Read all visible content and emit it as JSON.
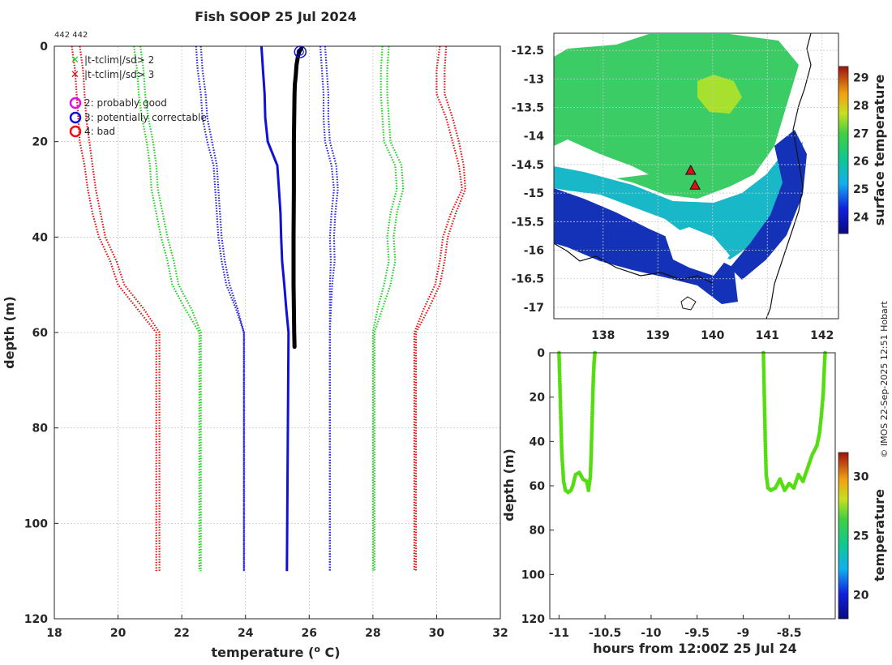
{
  "title": "Fish SOOP 25 Jul 2024",
  "counts_label": "442 442",
  "credit": "© IMOS 22-Sep-2025 12:51 Hobart",
  "colors": {
    "profile": "#000000",
    "clim": "#1010d8",
    "sd1": "#22cc22",
    "sd2": "#2222dd",
    "sd3": "#dd1111",
    "scatter": "#55dd11",
    "marker_pg": "#e010e0",
    "marker_pc": "#1010d8",
    "marker_bad": "#ee1111"
  },
  "legend": {
    "flag_x_green": "|t-tclim|/sd> 2",
    "flag_x_red": "|t-tclim|/sd> 3",
    "qc_good": "2: probably good",
    "qc_correctable": "3: potentially correctable",
    "qc_bad": "4: bad"
  },
  "chart_data": [
    {
      "id": "profile",
      "type": "line",
      "title": "Fish SOOP 25 Jul 2024",
      "xlabel": "temperature (o C)",
      "ylabel": "depth (m)",
      "xlim": [
        18,
        32
      ],
      "ylim": [
        120,
        0
      ],
      "xticks": [
        "18",
        "20",
        "22",
        "24",
        "26",
        "28",
        "30",
        "32"
      ],
      "yticks": [
        "0",
        "20",
        "40",
        "60",
        "80",
        "100",
        "120"
      ],
      "depths": [
        0,
        5,
        10,
        15,
        20,
        25,
        30,
        35,
        40,
        45,
        50,
        55,
        60,
        110
      ],
      "series": [
        {
          "name": "climatology",
          "style": "solid",
          "color_key": "clim",
          "values": [
            24.5,
            24.55,
            24.6,
            24.62,
            24.7,
            25.0,
            25.05,
            25.1,
            25.12,
            25.15,
            25.22,
            25.28,
            25.35,
            25.3
          ]
        },
        {
          "name": "clim - 1sd",
          "style": "dotted",
          "color_key": "sd2",
          "values": [
            22.45,
            22.5,
            22.6,
            22.65,
            22.8,
            23.0,
            23.05,
            23.1,
            23.15,
            23.25,
            23.4,
            23.7,
            23.95,
            23.95
          ]
        },
        {
          "name": "clim + 1sd",
          "style": "dotted",
          "color_key": "sd2",
          "values": [
            26.35,
            26.4,
            26.45,
            26.45,
            26.5,
            26.7,
            26.78,
            26.7,
            26.65,
            26.68,
            26.65,
            26.65,
            26.65,
            26.65
          ]
        },
        {
          "name": "clim - 1sd (b)",
          "style": "dotted",
          "color_key": "sd2",
          "values": [
            22.6,
            22.65,
            22.75,
            22.8,
            22.95,
            23.1,
            23.15,
            23.2,
            23.25,
            23.35,
            23.5,
            23.75,
            23.95,
            23.95
          ]
        },
        {
          "name": "clim + 1sd (b)",
          "style": "dotted",
          "color_key": "sd2",
          "values": [
            26.5,
            26.55,
            26.6,
            26.6,
            26.65,
            26.85,
            26.9,
            26.82,
            26.78,
            26.8,
            26.72,
            26.68,
            26.65,
            26.65
          ]
        },
        {
          "name": "clim - 2sd",
          "style": "dotted",
          "color_key": "sd1",
          "values": [
            20.5,
            20.6,
            20.65,
            20.75,
            20.9,
            21.0,
            21.05,
            21.2,
            21.35,
            21.55,
            21.7,
            22.1,
            22.55,
            22.55
          ]
        },
        {
          "name": "clim + 2sd",
          "style": "dotted",
          "color_key": "sd1",
          "values": [
            28.3,
            28.25,
            28.25,
            28.3,
            28.35,
            28.7,
            28.75,
            28.55,
            28.45,
            28.5,
            28.35,
            28.15,
            28.0,
            28.0
          ]
        },
        {
          "name": "clim - 2sd (b)",
          "style": "dotted",
          "color_key": "sd1",
          "values": [
            20.7,
            20.8,
            20.85,
            20.95,
            21.1,
            21.2,
            21.25,
            21.4,
            21.55,
            21.75,
            21.9,
            22.3,
            22.6,
            22.6
          ]
        },
        {
          "name": "clim + 2sd (b)",
          "style": "dotted",
          "color_key": "sd1",
          "values": [
            28.5,
            28.45,
            28.45,
            28.5,
            28.55,
            28.9,
            28.95,
            28.75,
            28.65,
            28.7,
            28.55,
            28.3,
            28.05,
            28.05
          ]
        },
        {
          "name": "clim - 3sd",
          "style": "dotted",
          "color_key": "sd3",
          "values": [
            18.55,
            18.65,
            18.7,
            18.75,
            18.8,
            18.95,
            19.05,
            19.2,
            19.4,
            19.75,
            20.0,
            20.6,
            21.2,
            21.2
          ]
        },
        {
          "name": "clim + 3sd",
          "style": "dotted",
          "color_key": "sd3",
          "values": [
            30.1,
            30.0,
            30.0,
            30.3,
            30.5,
            30.7,
            30.8,
            30.45,
            30.2,
            30.1,
            29.95,
            29.6,
            29.3,
            29.3
          ]
        },
        {
          "name": "clim - 3sd (b)",
          "style": "dotted",
          "color_key": "sd3",
          "values": [
            18.8,
            18.9,
            18.95,
            19.0,
            19.1,
            19.2,
            19.3,
            19.45,
            19.6,
            19.95,
            20.2,
            20.8,
            21.3,
            21.3
          ]
        },
        {
          "name": "clim + 3sd (b)",
          "style": "dotted",
          "color_key": "sd3",
          "values": [
            30.3,
            30.25,
            30.25,
            30.5,
            30.7,
            30.85,
            30.9,
            30.6,
            30.35,
            30.25,
            30.1,
            29.75,
            29.35,
            29.35
          ]
        }
      ],
      "observed": {
        "name": "observed profile",
        "depth": [
          0.5,
          1,
          2,
          4,
          6,
          8,
          10,
          15,
          20,
          30,
          40,
          50,
          55,
          60,
          63
        ],
        "temp": [
          25.75,
          25.7,
          25.65,
          25.6,
          25.58,
          25.55,
          25.54,
          25.53,
          25.52,
          25.52,
          25.51,
          25.51,
          25.52,
          25.53,
          25.54
        ]
      },
      "flag_markers": [
        {
          "temp": 25.72,
          "depth": 0.5,
          "qc": "3: potentially correctable"
        }
      ]
    },
    {
      "id": "map",
      "type": "heatmap",
      "colorbar_label": "surface temperature",
      "xlim": [
        137.1,
        142.3
      ],
      "ylim": [
        -17.2,
        -12.2
      ],
      "xticks": [
        "138",
        "139",
        "140",
        "141",
        "142"
      ],
      "yticks": [
        "-12.5",
        "-13",
        "-13.5",
        "-14",
        "-14.5",
        "-15",
        "-15.5",
        "-16",
        "-16.5",
        "-17"
      ],
      "colorbar_ticks": [
        "24",
        "25",
        "26",
        "27",
        "28",
        "29"
      ],
      "colorbar_range": [
        23.4,
        29.4
      ],
      "stations": [
        {
          "lon": 139.6,
          "lat": -14.6
        },
        {
          "lon": 139.68,
          "lat": -14.86
        }
      ]
    },
    {
      "id": "time_depth",
      "type": "scatter",
      "xlabel": "hours from 12:00Z 25 Jul 24",
      "ylabel": "depth (m)",
      "colorbar_label": "temperature",
      "xlim": [
        -11.1,
        -8.0
      ],
      "ylim": [
        120,
        0
      ],
      "xticks": [
        "-11",
        "-10.5",
        "-10",
        "-9.5",
        "-9",
        "-8.5"
      ],
      "yticks": [
        "0",
        "20",
        "40",
        "60",
        "80",
        "100",
        "120"
      ],
      "colorbar_ticks": [
        "20",
        "25",
        "30"
      ],
      "colorbar_range": [
        18,
        32
      ],
      "series": [
        {
          "name": "drop 1",
          "hours": [
            -11.0,
            -10.99,
            -10.98,
            -10.97,
            -10.95,
            -10.93,
            -10.9,
            -10.87,
            -10.85,
            -10.82,
            -10.78,
            -10.74,
            -10.7,
            -10.68,
            -10.66,
            -10.65,
            -10.64,
            -10.63,
            -10.62,
            -10.61
          ],
          "depth": [
            0,
            15,
            30,
            45,
            58,
            62,
            63,
            62,
            60,
            55,
            54,
            57,
            58,
            62,
            56,
            45,
            30,
            15,
            5,
            0
          ]
        },
        {
          "name": "drop 2",
          "hours": [
            -8.78,
            -8.77,
            -8.76,
            -8.75,
            -8.73,
            -8.7,
            -8.65,
            -8.6,
            -8.55,
            -8.5,
            -8.45,
            -8.4,
            -8.35,
            -8.3,
            -8.25,
            -8.2,
            -8.17,
            -8.15,
            -8.13,
            -8.12,
            -8.11
          ],
          "depth": [
            0,
            20,
            40,
            55,
            61,
            62,
            61,
            57,
            62,
            59,
            61,
            55,
            58,
            52,
            46,
            42,
            36,
            28,
            18,
            8,
            0
          ]
        }
      ]
    }
  ]
}
